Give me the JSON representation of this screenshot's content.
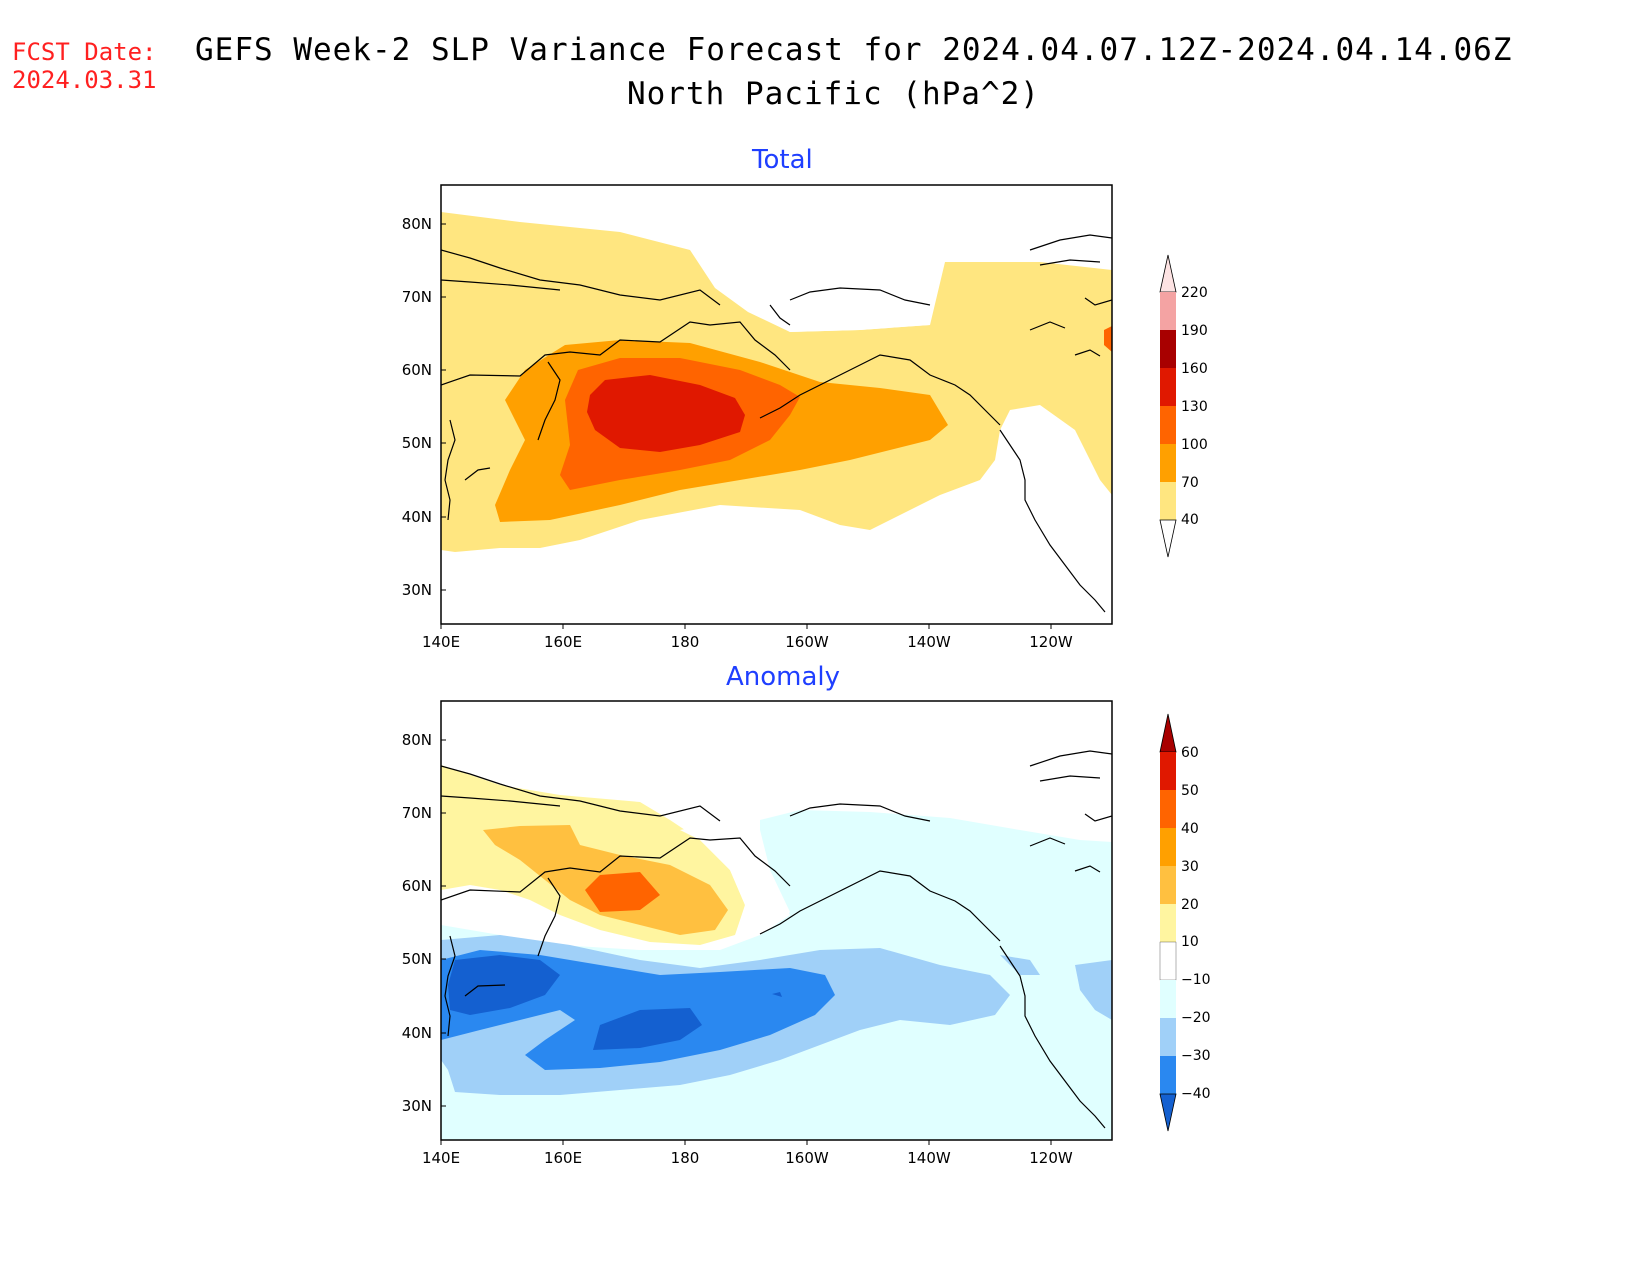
{
  "fcst_date": {
    "label": "FCST Date:",
    "value": "2024.03.31"
  },
  "title": {
    "line1": "GEFS Week-2 SLP Variance Forecast for 2024.04.07.12Z-2024.04.14.06Z",
    "line2": "North Pacific (hPa^2)"
  },
  "panels": [
    {
      "title": "Total",
      "lat_labels": [
        "80N",
        "70N",
        "60N",
        "50N",
        "40N",
        "30N"
      ],
      "lon_labels": [
        "140E",
        "160E",
        "180",
        "160W",
        "140W",
        "120W"
      ],
      "colorbar": {
        "levels": [
          "220",
          "190",
          "160",
          "130",
          "100",
          "70",
          "40"
        ],
        "colors": [
          "#fde3e3",
          "#f4a3a3",
          "#a80000",
          "#e01800",
          "#ff6400",
          "#ffa000",
          "#ffe680"
        ]
      }
    },
    {
      "title": "Anomaly",
      "lat_labels": [
        "80N",
        "70N",
        "60N",
        "50N",
        "40N",
        "30N"
      ],
      "lon_labels": [
        "140E",
        "160E",
        "180",
        "160W",
        "140W",
        "120W"
      ],
      "colorbar": {
        "levels": [
          "60",
          "50",
          "40",
          "30",
          "20",
          "10",
          "−10",
          "−20",
          "−30",
          "−40"
        ],
        "colors": [
          "#a80000",
          "#e01800",
          "#ff6400",
          "#ffa000",
          "#ffc040",
          "#fff5a0",
          "#ffffff",
          "#e0ffff",
          "#a0d0f8",
          "#2a88f0",
          "#1460d0"
        ]
      }
    }
  ],
  "chart_data": [
    {
      "type": "heatmap",
      "title": "Total",
      "units": "hPa^2",
      "contour_levels": [
        40,
        70,
        100,
        130,
        160,
        190,
        220
      ],
      "lat_range": [
        25,
        85
      ],
      "lon_range": [
        "140E",
        "110W"
      ],
      "max_center": {
        "lat": 54,
        "lon": "175E",
        "value_range": "130-160"
      }
    },
    {
      "type": "heatmap",
      "title": "Anomaly",
      "units": "hPa^2",
      "contour_levels": [
        -40,
        -30,
        -20,
        -10,
        10,
        20,
        30,
        40,
        50,
        60
      ],
      "lat_range": [
        25,
        85
      ],
      "lon_range": [
        "140E",
        "110W"
      ],
      "positive_center": {
        "lat": 58,
        "lon": "172E",
        "value_range": "30-40"
      },
      "negative_centers": [
        {
          "lat": 46,
          "lon": "150E",
          "value_range": "-40 to -30"
        },
        {
          "lat": 42,
          "lon": "175E",
          "value_range": "-40 to -30"
        }
      ]
    }
  ]
}
